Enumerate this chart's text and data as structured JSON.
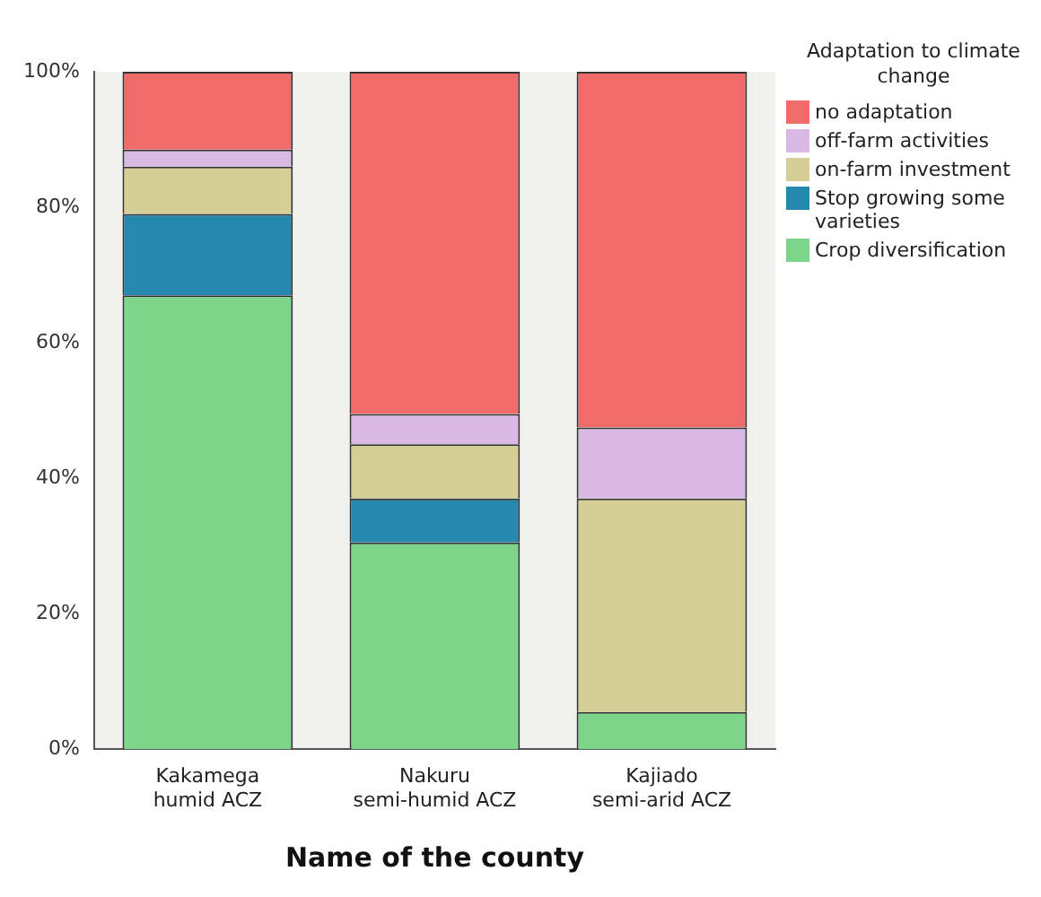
{
  "chart_data": {
    "type": "bar",
    "stacked": true,
    "xlabel": "Name of the county",
    "legend_title": "Adaptation to climate change",
    "legend": "right",
    "grid": false,
    "categories": [
      "Kakamega humid ACZ",
      "Nakuru semi-humid ACZ",
      "Kajiado semi-arid ACZ"
    ],
    "ylim": [
      0,
      100
    ],
    "yticks": [
      {
        "value": 0,
        "label": "0%"
      },
      {
        "value": 20,
        "label": "20%"
      },
      {
        "value": 40,
        "label": "40%"
      },
      {
        "value": 60,
        "label": "60%"
      },
      {
        "value": 80,
        "label": "80%"
      },
      {
        "value": 100,
        "label": "100%"
      }
    ],
    "series": [
      {
        "name": "Crop diversification",
        "color": "#7dd58c",
        "values": [
          67,
          30.5,
          5.5
        ]
      },
      {
        "name": "Stop growing some varieties",
        "color": "#2688ad",
        "values": [
          12,
          6.5,
          0
        ]
      },
      {
        "name": "on-farm investment",
        "color": "#d5cf95",
        "values": [
          7,
          8,
          31.5
        ]
      },
      {
        "name": "off-farm activities",
        "color": "#dab9e6",
        "values": [
          2.5,
          4.5,
          10.5
        ]
      },
      {
        "name": "no adaptation",
        "color": "#f26b6b",
        "values": [
          11.5,
          50.5,
          52.5
        ]
      }
    ]
  }
}
